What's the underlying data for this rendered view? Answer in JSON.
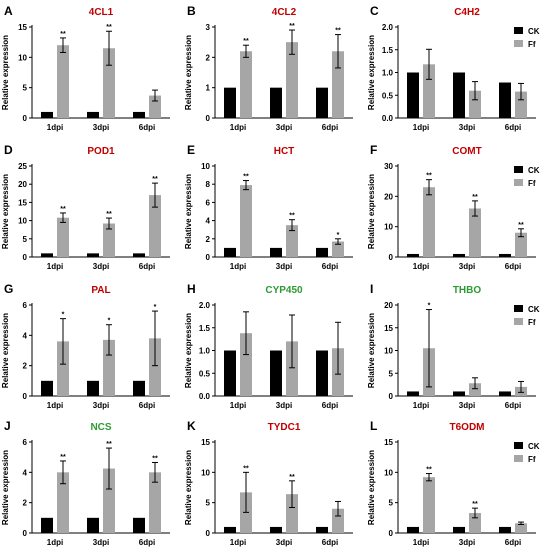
{
  "colors": {
    "ck": "#000000",
    "ff": "#a6a6a6",
    "title_red": "#c00000",
    "title_green": "#2e9a32"
  },
  "legend": {
    "ck": "CK",
    "ff": "Ff"
  },
  "chart_data": [
    {
      "letter": "A",
      "title": "4CL1",
      "title_color": "red",
      "type": "bar",
      "categories": [
        "1dpi",
        "3dpi",
        "6dpi"
      ],
      "ylabel": "Relative expression",
      "ylim": [
        0,
        15
      ],
      "yticks": [
        0,
        5,
        10,
        15
      ],
      "tick_labels": [
        "0",
        "5",
        "10",
        "15"
      ],
      "legend": false,
      "series": [
        {
          "name": "CK",
          "values": [
            1,
            1,
            1
          ],
          "err": [
            0,
            0,
            0
          ]
        },
        {
          "name": "Ff",
          "values": [
            12,
            11.5,
            3.7
          ],
          "err": [
            1.2,
            2.8,
            0.9
          ]
        }
      ],
      "sig": [
        "**",
        "**",
        ""
      ]
    },
    {
      "letter": "B",
      "title": "4CL2",
      "title_color": "red",
      "type": "bar",
      "categories": [
        "1dpi",
        "3dpi",
        "6dpi"
      ],
      "ylabel": "Relative expression",
      "ylim": [
        0,
        3
      ],
      "yticks": [
        0,
        1,
        2,
        3
      ],
      "tick_labels": [
        "0",
        "1",
        "2",
        "3"
      ],
      "legend": false,
      "series": [
        {
          "name": "CK",
          "values": [
            1,
            1,
            1
          ],
          "err": [
            0,
            0,
            0
          ]
        },
        {
          "name": "Ff",
          "values": [
            2.2,
            2.5,
            2.2
          ],
          "err": [
            0.2,
            0.4,
            0.55
          ]
        }
      ],
      "sig": [
        "**",
        "**",
        "**"
      ]
    },
    {
      "letter": "C",
      "title": "C4H2",
      "title_color": "red",
      "type": "bar",
      "categories": [
        "1dpi",
        "3dpi",
        "6dpi"
      ],
      "ylabel": "Relative expression",
      "ylim": [
        0,
        2.0
      ],
      "yticks": [
        0,
        0.5,
        1.0,
        1.5,
        2.0
      ],
      "tick_labels": [
        "0.0",
        "0.5",
        "1.0",
        "1.5",
        "2.0"
      ],
      "legend": true,
      "series": [
        {
          "name": "CK",
          "values": [
            1,
            1,
            0.78
          ],
          "err": [
            0,
            0,
            0
          ]
        },
        {
          "name": "Ff",
          "values": [
            1.18,
            0.6,
            0.58
          ],
          "err": [
            0.33,
            0.2,
            0.18
          ]
        }
      ],
      "sig": [
        "",
        "",
        ""
      ]
    },
    {
      "letter": "D",
      "title": "POD1",
      "title_color": "red",
      "type": "bar",
      "categories": [
        "1dpi",
        "3dpi",
        "6dpi"
      ],
      "ylabel": "Relative expression",
      "ylim": [
        0,
        25
      ],
      "yticks": [
        0,
        5,
        10,
        15,
        20,
        25
      ],
      "tick_labels": [
        "0",
        "5",
        "10",
        "15",
        "20",
        "25"
      ],
      "legend": false,
      "series": [
        {
          "name": "CK",
          "values": [
            1,
            1,
            1
          ],
          "err": [
            0,
            0,
            0
          ]
        },
        {
          "name": "Ff",
          "values": [
            10.8,
            9.2,
            17
          ],
          "err": [
            1.3,
            1.5,
            3.3
          ]
        }
      ],
      "sig": [
        "**",
        "**",
        "**"
      ]
    },
    {
      "letter": "E",
      "title": "HCT",
      "title_color": "red",
      "type": "bar",
      "categories": [
        "1dpi",
        "3dpi",
        "6dpi"
      ],
      "ylabel": "Relative expression",
      "ylim": [
        0,
        10
      ],
      "yticks": [
        0,
        2,
        4,
        6,
        8,
        10
      ],
      "tick_labels": [
        "0",
        "2",
        "4",
        "6",
        "8",
        "10"
      ],
      "legend": false,
      "series": [
        {
          "name": "CK",
          "values": [
            1,
            1,
            1
          ],
          "err": [
            0,
            0,
            0
          ]
        },
        {
          "name": "Ff",
          "values": [
            7.9,
            3.5,
            1.7
          ],
          "err": [
            0.5,
            0.6,
            0.3
          ]
        }
      ],
      "sig": [
        "**",
        "**",
        "*"
      ]
    },
    {
      "letter": "F",
      "title": "COMT",
      "title_color": "red",
      "type": "bar",
      "categories": [
        "1dpi",
        "3dpi",
        "6dpi"
      ],
      "ylabel": "Relative expression",
      "ylim": [
        0,
        30
      ],
      "yticks": [
        0,
        10,
        20,
        30
      ],
      "tick_labels": [
        "0",
        "10",
        "20",
        "30"
      ],
      "legend": true,
      "series": [
        {
          "name": "CK",
          "values": [
            1,
            1,
            1
          ],
          "err": [
            0,
            0,
            0
          ]
        },
        {
          "name": "Ff",
          "values": [
            23,
            16,
            8
          ],
          "err": [
            2.5,
            2.5,
            1.3
          ]
        }
      ],
      "sig": [
        "**",
        "**",
        "**"
      ]
    },
    {
      "letter": "G",
      "title": "PAL",
      "title_color": "red",
      "type": "bar",
      "categories": [
        "1dpi",
        "3dpi",
        "6dpi"
      ],
      "ylabel": "Relative expression",
      "ylim": [
        0,
        6
      ],
      "yticks": [
        0,
        2,
        4,
        6
      ],
      "tick_labels": [
        "0",
        "2",
        "4",
        "6"
      ],
      "legend": false,
      "series": [
        {
          "name": "CK",
          "values": [
            1,
            1,
            1
          ],
          "err": [
            0,
            0,
            0
          ]
        },
        {
          "name": "Ff",
          "values": [
            3.6,
            3.7,
            3.8
          ],
          "err": [
            1.5,
            1.0,
            1.8
          ]
        }
      ],
      "sig": [
        "*",
        "*",
        "*"
      ]
    },
    {
      "letter": "H",
      "title": "CYP450",
      "title_color": "green",
      "type": "bar",
      "categories": [
        "1dpi",
        "3dpi",
        "6dpi"
      ],
      "ylabel": "Relative expression",
      "ylim": [
        0,
        2.0
      ],
      "yticks": [
        0,
        0.5,
        1.0,
        1.5,
        2.0
      ],
      "tick_labels": [
        "0.0",
        "0.5",
        "1.0",
        "1.5",
        "2.0"
      ],
      "legend": false,
      "series": [
        {
          "name": "CK",
          "values": [
            1,
            1,
            1
          ],
          "err": [
            0,
            0,
            0
          ]
        },
        {
          "name": "Ff",
          "values": [
            1.38,
            1.2,
            1.05
          ],
          "err": [
            0.47,
            0.58,
            0.57
          ]
        }
      ],
      "sig": [
        "",
        "",
        ""
      ]
    },
    {
      "letter": "I",
      "title": "THBO",
      "title_color": "green",
      "type": "bar",
      "categories": [
        "1dpi",
        "3dpi",
        "6dpi"
      ],
      "ylabel": "Relative expression",
      "ylim": [
        0,
        20
      ],
      "yticks": [
        0,
        5,
        10,
        15,
        20
      ],
      "tick_labels": [
        "0",
        "5",
        "10",
        "15",
        "20"
      ],
      "legend": true,
      "series": [
        {
          "name": "CK",
          "values": [
            1,
            1,
            1
          ],
          "err": [
            0,
            0,
            0
          ]
        },
        {
          "name": "Ff",
          "values": [
            10.5,
            2.8,
            2
          ],
          "err": [
            8.5,
            1.2,
            1.2
          ]
        }
      ],
      "sig": [
        "*",
        "",
        ""
      ]
    },
    {
      "letter": "J",
      "title": "NCS",
      "title_color": "green",
      "type": "bar",
      "categories": [
        "1dpi",
        "3dpi",
        "6dpi"
      ],
      "ylabel": "Relative expression",
      "ylim": [
        0,
        6
      ],
      "yticks": [
        0,
        2,
        4,
        6
      ],
      "tick_labels": [
        "0",
        "2",
        "4",
        "6"
      ],
      "legend": false,
      "series": [
        {
          "name": "CK",
          "values": [
            1,
            1,
            1
          ],
          "err": [
            0,
            0,
            0
          ]
        },
        {
          "name": "Ff",
          "values": [
            4,
            4.25,
            4
          ],
          "err": [
            0.75,
            1.35,
            0.65
          ]
        }
      ],
      "sig": [
        "**",
        "**",
        "**"
      ]
    },
    {
      "letter": "K",
      "title": "TYDC1",
      "title_color": "red",
      "type": "bar",
      "categories": [
        "1dpi",
        "3dpi",
        "6dpi"
      ],
      "ylabel": "Relative expression",
      "ylim": [
        0,
        15
      ],
      "yticks": [
        0,
        5,
        10,
        15
      ],
      "tick_labels": [
        "0",
        "5",
        "10",
        "15"
      ],
      "legend": false,
      "series": [
        {
          "name": "CK",
          "values": [
            1,
            1,
            1
          ],
          "err": [
            0,
            0,
            0
          ]
        },
        {
          "name": "Ff",
          "values": [
            6.7,
            6.4,
            4
          ],
          "err": [
            3.3,
            2.2,
            1.2
          ]
        }
      ],
      "sig": [
        "**",
        "**",
        ""
      ]
    },
    {
      "letter": "L",
      "title": "T6ODM",
      "title_color": "red",
      "type": "bar",
      "categories": [
        "1dpi",
        "3dpi",
        "6dpi"
      ],
      "ylabel": "Relative expression",
      "ylim": [
        0,
        15
      ],
      "yticks": [
        0,
        5,
        10,
        15
      ],
      "tick_labels": [
        "0",
        "5",
        "10",
        "15"
      ],
      "legend": true,
      "series": [
        {
          "name": "CK",
          "values": [
            1,
            1,
            1
          ],
          "err": [
            0,
            0,
            0
          ]
        },
        {
          "name": "Ff",
          "values": [
            9.2,
            3.3,
            1.6
          ],
          "err": [
            0.6,
            0.8,
            0.2
          ]
        }
      ],
      "sig": [
        "**",
        "**",
        ""
      ]
    }
  ]
}
